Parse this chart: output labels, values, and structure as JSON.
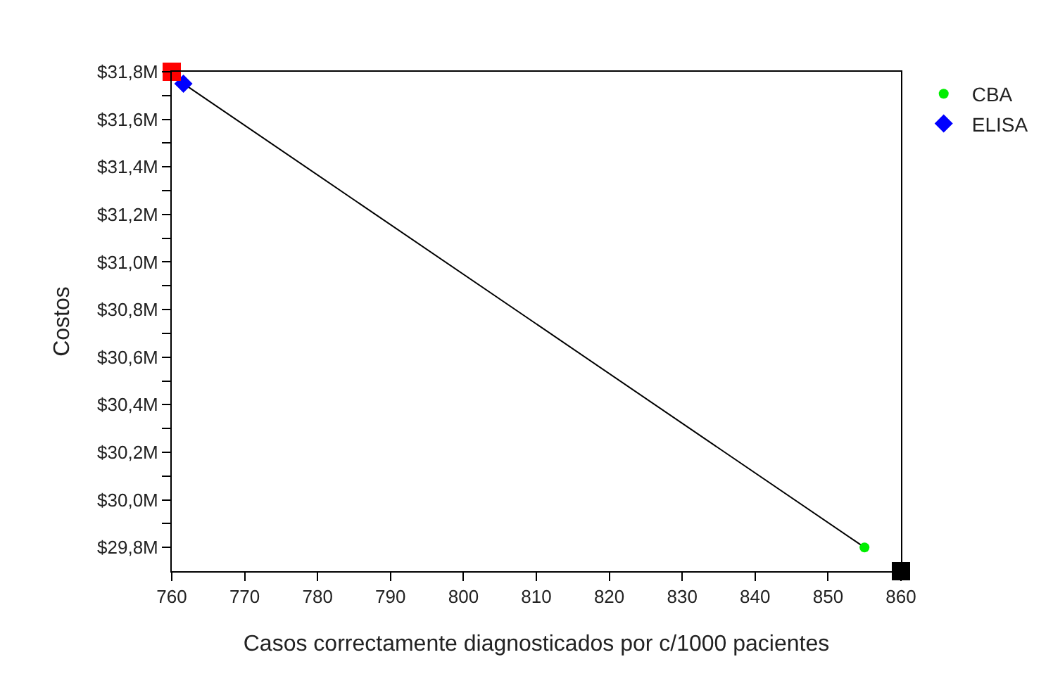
{
  "chart_data": {
    "type": "scatter",
    "xlabel": "Casos correctamente diagnosticados por c/1000 pacientes",
    "ylabel": "Costos",
    "xlim": [
      760,
      860
    ],
    "xticks": [
      760,
      770,
      780,
      790,
      800,
      810,
      820,
      830,
      840,
      850,
      860
    ],
    "ylim": [
      29.7,
      31.8
    ],
    "yticks": [
      {
        "value": 29.8,
        "label": "$29,8M"
      },
      {
        "value": 29.9,
        "label": null
      },
      {
        "value": 30.0,
        "label": "$30,0M"
      },
      {
        "value": 30.1,
        "label": null
      },
      {
        "value": 30.2,
        "label": "$30,2M"
      },
      {
        "value": 30.3,
        "label": null
      },
      {
        "value": 30.4,
        "label": "$30,4M"
      },
      {
        "value": 30.5,
        "label": null
      },
      {
        "value": 30.6,
        "label": "$30,6M"
      },
      {
        "value": 30.7,
        "label": null
      },
      {
        "value": 30.8,
        "label": "$30,8M"
      },
      {
        "value": 30.9,
        "label": null
      },
      {
        "value": 31.0,
        "label": "$31,0M"
      },
      {
        "value": 31.1,
        "label": null
      },
      {
        "value": 31.2,
        "label": "$31,2M"
      },
      {
        "value": 31.3,
        "label": null
      },
      {
        "value": 31.4,
        "label": "$31,4M"
      },
      {
        "value": 31.5,
        "label": null
      },
      {
        "value": 31.6,
        "label": "$31,6M"
      },
      {
        "value": 31.7,
        "label": null
      },
      {
        "value": 31.8,
        "label": "$31,8M"
      }
    ],
    "legend": "top right",
    "series": [
      {
        "type": "line",
        "color": "#000000",
        "x": [
          761.6,
          855
        ],
        "values": [
          31.75,
          29.8
        ],
        "marker": "none",
        "line_style": "solid"
      },
      {
        "name": "CBA",
        "color": "#00ee00",
        "x": [
          855
        ],
        "values": [
          29.8
        ],
        "marker": "circle"
      },
      {
        "name": "ELISA",
        "color": "#0000ff",
        "x": [
          761.6
        ],
        "values": [
          31.75
        ],
        "marker": "diamond"
      },
      {
        "color": "#ff0000",
        "x": [
          760
        ],
        "values": [
          31.8
        ],
        "marker": "square"
      },
      {
        "color": "#000000",
        "x": [
          860
        ],
        "values": [
          29.7
        ],
        "marker": "square"
      }
    ]
  }
}
